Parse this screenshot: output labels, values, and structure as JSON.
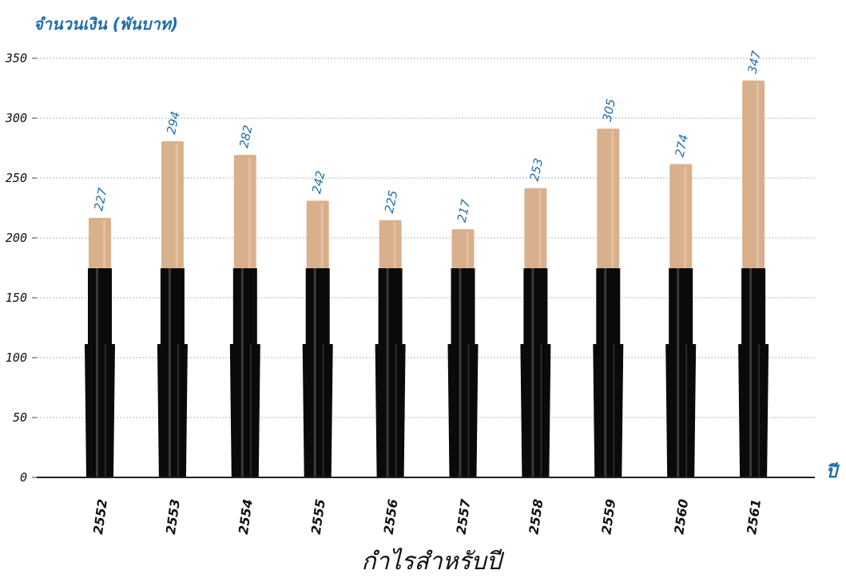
{
  "chart_data": {
    "type": "bar",
    "ylabel": "จำนวนเงิน (พันบาท)",
    "xunit": "ปี",
    "xlabel": "กำไรสำหรับปี",
    "ylim": [
      0,
      350
    ],
    "yticks": [
      0,
      50,
      100,
      150,
      200,
      250,
      300,
      350
    ],
    "grid": true,
    "categories": [
      "2552",
      "2553",
      "2554",
      "2555",
      "2556",
      "2557",
      "2558",
      "2559",
      "2560",
      "2561"
    ],
    "values": [
      227,
      294,
      282,
      242,
      225,
      217,
      253,
      305,
      274,
      347
    ],
    "colors": {
      "bar_top": "#d9b08c",
      "bar_base": "#0a0a0a",
      "label": "#1f6fa8",
      "axis": "#444444",
      "grid": "#b5b5b5"
    }
  }
}
